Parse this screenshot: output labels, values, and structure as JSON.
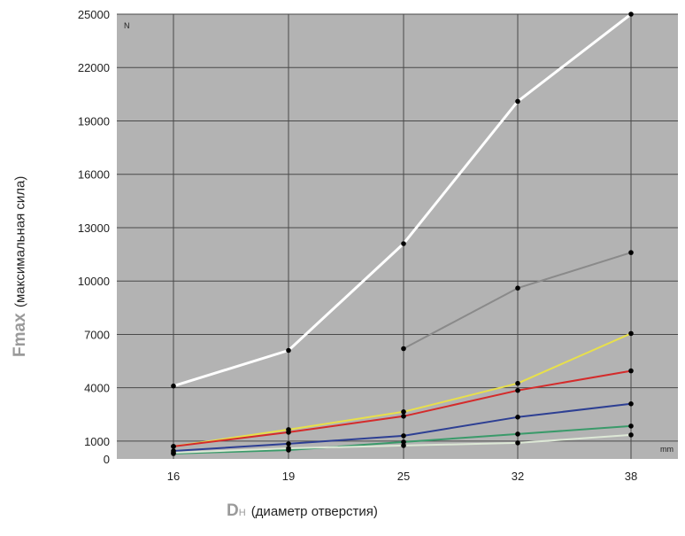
{
  "chart_data": {
    "type": "line",
    "x": [
      "16",
      "19",
      "25",
      "32",
      "38"
    ],
    "y_ticks": [
      "25000",
      "22000",
      "19000",
      "16000",
      "13000",
      "10000",
      "7000",
      "4000",
      "1000",
      "0"
    ],
    "y_tick_values": [
      25000,
      22000,
      19000,
      16000,
      13000,
      10000,
      7000,
      4000,
      1000,
      0
    ],
    "ylim": [
      0,
      25000
    ],
    "grid": true,
    "y_unit": "N",
    "x_unit": "mm",
    "ylabel_symbol": "Fmax",
    "ylabel_text": "(максимальная сила)",
    "xlabel_symbol": "D",
    "xlabel_subscript": "H",
    "xlabel_text": "(диаметр отверстия)",
    "background": "#b3b3b3",
    "series": [
      {
        "color": "#ffffff",
        "points": [
          [
            0,
            4100
          ],
          [
            1,
            6100
          ],
          [
            2,
            12100
          ],
          [
            3,
            20100
          ],
          [
            4,
            25000
          ]
        ]
      },
      {
        "color": "#8a8a8a",
        "points": [
          [
            2,
            6200
          ],
          [
            3,
            9600
          ],
          [
            4,
            11600
          ]
        ]
      },
      {
        "color": "#e8e04a",
        "points": [
          [
            0,
            700
          ],
          [
            1,
            1650
          ],
          [
            2,
            2650
          ],
          [
            3,
            4250
          ],
          [
            4,
            7050
          ]
        ]
      },
      {
        "color": "#d42b2b",
        "points": [
          [
            0,
            700
          ],
          [
            1,
            1500
          ],
          [
            2,
            2400
          ],
          [
            3,
            3850
          ],
          [
            4,
            4950
          ]
        ]
      },
      {
        "color": "#2d3f93",
        "points": [
          [
            0,
            450
          ],
          [
            1,
            850
          ],
          [
            2,
            1300
          ],
          [
            3,
            2350
          ],
          [
            4,
            3100
          ]
        ]
      },
      {
        "color": "#3a9a6a",
        "points": [
          [
            0,
            300
          ],
          [
            1,
            500
          ],
          [
            2,
            950
          ],
          [
            3,
            1400
          ],
          [
            4,
            1850
          ]
        ]
      },
      {
        "color": "#dde8d6",
        "points": [
          [
            0,
            350
          ],
          [
            1,
            600
          ],
          [
            2,
            750
          ],
          [
            3,
            900
          ],
          [
            4,
            1350
          ]
        ]
      }
    ]
  }
}
